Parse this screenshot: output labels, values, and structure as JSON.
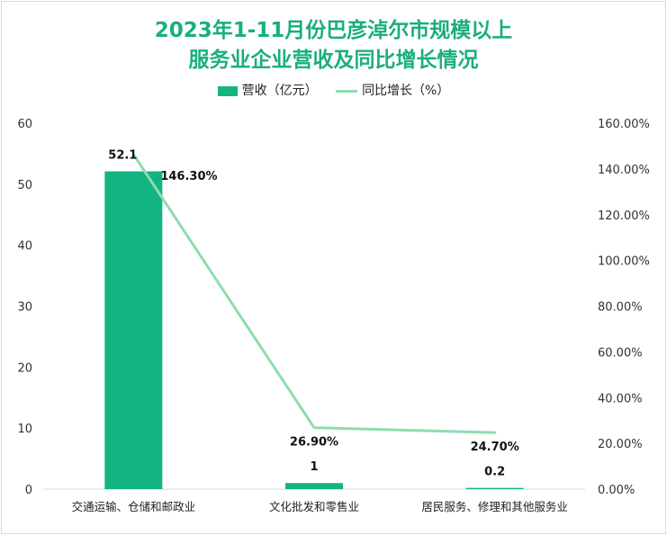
{
  "title": {
    "line1": "2023年1-11月份巴彦淖尔市规模以上",
    "line2": "服务业企业营收及同比增长情况"
  },
  "legend": {
    "bar_label": "营收（亿元）",
    "line_label": "同比增长（%）"
  },
  "colors": {
    "bar": "#13b382",
    "line": "#8fdcaf",
    "title": "#1aaf7a"
  },
  "chart_data": {
    "type": "bar",
    "categories": [
      "交通运输、仓储和邮政业",
      "文化批发和零售业",
      "居民服务、修理和其他服务业"
    ],
    "series": [
      {
        "name": "营收（亿元）",
        "type": "bar",
        "axis": "left",
        "values": [
          52.1,
          1,
          0.2
        ],
        "labels": [
          "52.1",
          "1",
          "0.2"
        ]
      },
      {
        "name": "同比增长（%）",
        "type": "line",
        "axis": "right",
        "values": [
          146.3,
          26.9,
          24.7
        ],
        "labels": [
          "146.30%",
          "26.90%",
          "24.70%"
        ]
      }
    ],
    "y_left": {
      "ylim": [
        0,
        60
      ],
      "ticks": [
        "0",
        "10",
        "20",
        "30",
        "40",
        "50",
        "60"
      ]
    },
    "y_right": {
      "ylim": [
        0,
        160
      ],
      "ticks": [
        "0.00%",
        "20.00%",
        "40.00%",
        "60.00%",
        "80.00%",
        "100.00%",
        "120.00%",
        "140.00%",
        "160.00%"
      ]
    },
    "legend_position": "top",
    "grid": false
  }
}
